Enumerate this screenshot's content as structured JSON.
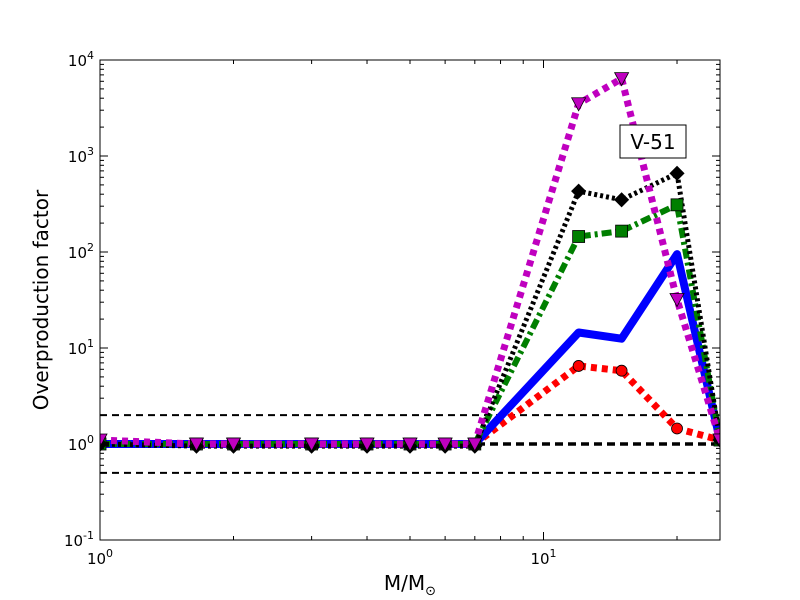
{
  "chart_data": {
    "type": "line",
    "title": "",
    "xlabel": "M/M",
    "xlabel_symbol": "⊙",
    "ylabel": "Overproduction factor",
    "x_scale": "log",
    "y_scale": "log",
    "xlim": [
      1,
      25
    ],
    "ylim": [
      0.1,
      10000
    ],
    "x_ticks": [
      {
        "value": 1,
        "base": "10",
        "exp": "0"
      },
      {
        "value": 10,
        "base": "10",
        "exp": "1"
      }
    ],
    "y_ticks": [
      {
        "value": 0.1,
        "base": "10",
        "exp": "-1"
      },
      {
        "value": 1,
        "base": "10",
        "exp": "0"
      },
      {
        "value": 10,
        "base": "10",
        "exp": "1"
      },
      {
        "value": 100,
        "base": "10",
        "exp": "2"
      },
      {
        "value": 1000,
        "base": "10",
        "exp": "3"
      },
      {
        "value": 10000,
        "base": "10",
        "exp": "4"
      }
    ],
    "annotation": "V-51",
    "reference_lines": [
      {
        "y": 2.0,
        "style": "dashed",
        "width": "thin"
      },
      {
        "y": 1.0,
        "style": "dashed",
        "width": "thick"
      },
      {
        "y": 0.5,
        "style": "dashed",
        "width": "thin"
      }
    ],
    "grid": false,
    "series": [
      {
        "color": "#ff0000",
        "style": "dotted",
        "marker": "circle",
        "x": [
          1.0,
          1.65,
          2.0,
          3.0,
          4.0,
          5.0,
          6.0,
          7.0,
          12.0,
          15.0,
          20.0,
          25.0
        ],
        "y": [
          1.0,
          1.0,
          1.0,
          1.0,
          1.0,
          1.0,
          1.0,
          1.0,
          6.5,
          5.8,
          1.45,
          1.1
        ]
      },
      {
        "color": "#0000ff",
        "style": "solid",
        "marker": "none",
        "x": [
          1.0,
          1.65,
          2.0,
          3.0,
          4.0,
          5.0,
          6.0,
          7.0,
          12.0,
          15.0,
          20.0,
          25.0
        ],
        "y": [
          1.0,
          1.0,
          1.0,
          1.0,
          1.0,
          1.0,
          1.0,
          1.0,
          14.5,
          12.5,
          95,
          1.1
        ]
      },
      {
        "color": "#007f00",
        "style": "dashdot",
        "marker": "square",
        "x": [
          1.0,
          1.65,
          2.0,
          3.0,
          4.0,
          5.0,
          6.0,
          7.0,
          12.0,
          15.0,
          20.0,
          25.0
        ],
        "y": [
          1.0,
          1.0,
          1.0,
          1.0,
          1.0,
          1.0,
          1.0,
          1.0,
          145,
          165,
          310,
          1.1
        ]
      },
      {
        "color": "#000000",
        "style": "dotted",
        "marker": "diamond",
        "x": [
          1.0,
          1.65,
          2.0,
          3.0,
          4.0,
          5.0,
          6.0,
          7.0,
          12.0,
          15.0,
          20.0,
          25.0
        ],
        "y": [
          1.0,
          0.95,
          0.95,
          0.95,
          0.95,
          0.95,
          0.95,
          0.95,
          430,
          350,
          660,
          1.1
        ]
      },
      {
        "color": "#bf00bf",
        "style": "dotted",
        "marker": "triangle-down",
        "x": [
          1.0,
          1.65,
          2.0,
          3.0,
          4.0,
          5.0,
          6.0,
          7.0,
          12.0,
          15.0,
          20.0,
          25.0
        ],
        "y": [
          1.1,
          1.0,
          1.0,
          1.0,
          1.0,
          1.0,
          1.0,
          1.0,
          3500,
          6400,
          32,
          1.1
        ]
      }
    ]
  }
}
